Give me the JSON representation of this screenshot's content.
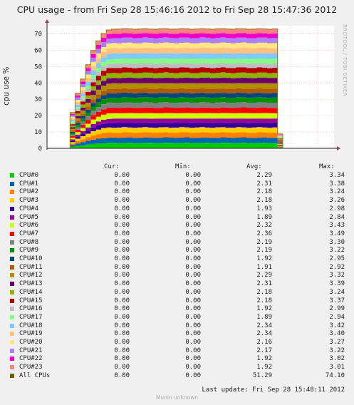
{
  "title": "CPU usage - from Fri Sep 28 15:46:16 2012 to Fri Sep 28 15:47:36 2012",
  "watermark": "RRDTOOL / TOBI OETIKER",
  "footer": {
    "last_update": "Last update: Fri Sep 28 15:48:11 2012",
    "munin": "Munin unknown"
  },
  "legend_headers": {
    "cur": "Cur:",
    "min": "Min:",
    "avg": "Avg:",
    "max": "Max:"
  },
  "colors": {
    "background": "#f0f0f0",
    "plot_bg": "#ffffff",
    "grid": "#ff9999",
    "axis": "#222222",
    "all_cpus": "#808000"
  },
  "chart_data": {
    "type": "area",
    "title": "CPU usage - from Fri Sep 28 15:46:16 2012 to Fri Sep 28 15:47:36 2012",
    "xlabel": "",
    "ylabel": "cpu use %",
    "ylim": [
      0,
      75
    ],
    "yticks": [
      0,
      10,
      20,
      30,
      40,
      50,
      60,
      70
    ],
    "grid": true,
    "stacked": true,
    "stack_profile": {
      "fraction_of_peak": [
        0,
        0.3,
        0.46,
        0.58,
        0.7,
        0.82,
        0.9,
        0.96,
        0.99,
        1,
        1,
        1,
        1,
        1,
        1,
        1,
        1,
        1,
        1,
        1,
        1,
        1,
        1,
        1,
        1,
        1,
        1,
        1,
        1,
        1,
        1,
        1,
        1,
        1,
        1,
        1,
        1,
        1,
        1,
        1,
        1,
        0.12,
        0
      ],
      "peak_total": 73
    },
    "series": [
      {
        "name": "CPU#0",
        "color": "#00cc00",
        "cur": "0.00",
        "min": "0.00",
        "avg": "2.29",
        "max": "3.34"
      },
      {
        "name": "CPU#1",
        "color": "#0066b3",
        "cur": "0.00",
        "min": "0.00",
        "avg": "2.31",
        "max": "3.38"
      },
      {
        "name": "CPU#2",
        "color": "#ff8000",
        "cur": "0.00",
        "min": "0.00",
        "avg": "2.18",
        "max": "3.24"
      },
      {
        "name": "CPU#3",
        "color": "#ffcc00",
        "cur": "0.00",
        "min": "0.00",
        "avg": "2.18",
        "max": "3.26"
      },
      {
        "name": "CPU#4",
        "color": "#330099",
        "cur": "0.00",
        "min": "0.00",
        "avg": "1.93",
        "max": "2.98"
      },
      {
        "name": "CPU#5",
        "color": "#990099",
        "cur": "0.00",
        "min": "0.00",
        "avg": "1.89",
        "max": "2.84"
      },
      {
        "name": "CPU#6",
        "color": "#ccff00",
        "cur": "0.00",
        "min": "0.00",
        "avg": "2.32",
        "max": "3.43"
      },
      {
        "name": "CPU#7",
        "color": "#ff0000",
        "cur": "0.00",
        "min": "0.00",
        "avg": "2.36",
        "max": "3.49"
      },
      {
        "name": "CPU#8",
        "color": "#808080",
        "cur": "0.00",
        "min": "0.00",
        "avg": "2.19",
        "max": "3.30"
      },
      {
        "name": "CPU#9",
        "color": "#008f00",
        "cur": "0.00",
        "min": "0.00",
        "avg": "2.19",
        "max": "3.22"
      },
      {
        "name": "CPU#10",
        "color": "#00487d",
        "cur": "0.00",
        "min": "0.00",
        "avg": "1.92",
        "max": "2.95"
      },
      {
        "name": "CPU#11",
        "color": "#b35a00",
        "cur": "0.00",
        "min": "0.00",
        "avg": "1.91",
        "max": "2.92"
      },
      {
        "name": "CPU#12",
        "color": "#b38f00",
        "cur": "0.00",
        "min": "0.00",
        "avg": "2.29",
        "max": "3.32"
      },
      {
        "name": "CPU#13",
        "color": "#6b006b",
        "cur": "0.00",
        "min": "0.00",
        "avg": "2.31",
        "max": "3.39"
      },
      {
        "name": "CPU#14",
        "color": "#8fb300",
        "cur": "0.00",
        "min": "0.00",
        "avg": "2.18",
        "max": "3.24"
      },
      {
        "name": "CPU#15",
        "color": "#b30000",
        "cur": "0.00",
        "min": "0.00",
        "avg": "2.18",
        "max": "3.37"
      },
      {
        "name": "CPU#16",
        "color": "#bebebe",
        "cur": "0.00",
        "min": "0.00",
        "avg": "1.92",
        "max": "2.99"
      },
      {
        "name": "CPU#17",
        "color": "#80ff80",
        "cur": "0.00",
        "min": "0.00",
        "avg": "1.89",
        "max": "2.94"
      },
      {
        "name": "CPU#18",
        "color": "#80c9ff",
        "cur": "0.00",
        "min": "0.00",
        "avg": "2.34",
        "max": "3.42"
      },
      {
        "name": "CPU#19",
        "color": "#ffc080",
        "cur": "0.00",
        "min": "0.00",
        "avg": "2.34",
        "max": "3.40"
      },
      {
        "name": "CPU#20",
        "color": "#ffe680",
        "cur": "0.00",
        "min": "0.00",
        "avg": "2.16",
        "max": "3.27"
      },
      {
        "name": "CPU#21",
        "color": "#aa80ff",
        "cur": "0.00",
        "min": "0.00",
        "avg": "2.17",
        "max": "3.22"
      },
      {
        "name": "CPU#22",
        "color": "#ee00cc",
        "cur": "0.00",
        "min": "0.00",
        "avg": "1.92",
        "max": "3.02"
      },
      {
        "name": "CPU#23",
        "color": "#ff8080",
        "cur": "0.00",
        "min": "0.00",
        "avg": "1.92",
        "max": "3.01"
      },
      {
        "name": "All CPUs",
        "color": "#666600",
        "cur": "0.00",
        "min": "0.00",
        "avg": "51.29",
        "max": "74.10"
      }
    ]
  }
}
